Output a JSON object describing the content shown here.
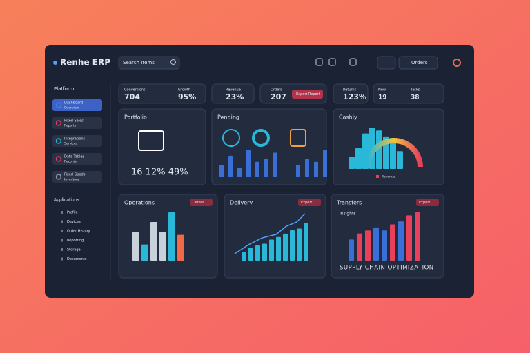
{
  "header": {
    "brand": "Renhe ERP",
    "search": "Search Items",
    "account": "Orders"
  },
  "sidebar": {
    "heading": "Platform",
    "items": [
      {
        "title": "Dashboard",
        "subtitle": "Overview"
      },
      {
        "title": "Fixed Sales",
        "subtitle": "Reports"
      },
      {
        "title": "Integrations",
        "subtitle": "Services"
      },
      {
        "title": "Data Tables",
        "subtitle": "Records"
      },
      {
        "title": "Fixed Goods",
        "subtitle": "Inventory"
      }
    ],
    "apps_heading": "Applications",
    "apps": [
      "Profile",
      "Devices",
      "Order History",
      "Reporting",
      "Storage",
      "Documents"
    ]
  },
  "kpis": [
    {
      "label": "Conversions",
      "value": "704"
    },
    {
      "label": "Growth",
      "value": "95%"
    },
    {
      "label": "Revenue",
      "value": "23%"
    },
    {
      "label": "Orders",
      "value": "207"
    },
    {
      "label": "Returns",
      "value": "123%"
    },
    {
      "label": "New",
      "value": "19"
    },
    {
      "label": "Tasks",
      "value": "38"
    }
  ],
  "kpi_button": "Export Report",
  "panels": [
    {
      "title": "Portfolio",
      "stats": "16 12% 49%"
    },
    {
      "title": "Pending",
      "bars": [
        20,
        35,
        15,
        45,
        25,
        30,
        40,
        20,
        30,
        25,
        45
      ],
      "color": "#3b6fd8"
    },
    {
      "title": "Cashly",
      "legend": "Revenue",
      "bars": [
        20,
        35,
        60,
        70,
        65,
        55,
        45,
        30
      ],
      "color": "#2ab8d8"
    },
    {
      "title": "Operations",
      "button": "Details",
      "bars": [
        45,
        25,
        60,
        45,
        75,
        40
      ],
      "colors": [
        "#c8d0dc",
        "#2ab8d8",
        "#c8d0dc",
        "#c8d0dc",
        "#2ab8d8",
        "#f06a4a"
      ]
    },
    {
      "title": "Delivery",
      "button": "Export",
      "bars": [
        10,
        15,
        18,
        20,
        25,
        28,
        32,
        36,
        38,
        45
      ],
      "color": "#2ab8d8"
    },
    {
      "title": "Transfers",
      "button": "Export",
      "subtitle": "Insights",
      "caption": "SUPPLY CHAIN OPTIMIZATION",
      "bars": [
        35,
        45,
        50,
        55,
        50,
        60,
        65,
        75,
        80
      ],
      "colors": [
        "#3b6fd8",
        "#e8405a",
        "#e8405a",
        "#3b6fd8",
        "#3b6fd8",
        "#e8405a",
        "#3b6fd8",
        "#e8405a",
        "#e8405a"
      ]
    }
  ]
}
